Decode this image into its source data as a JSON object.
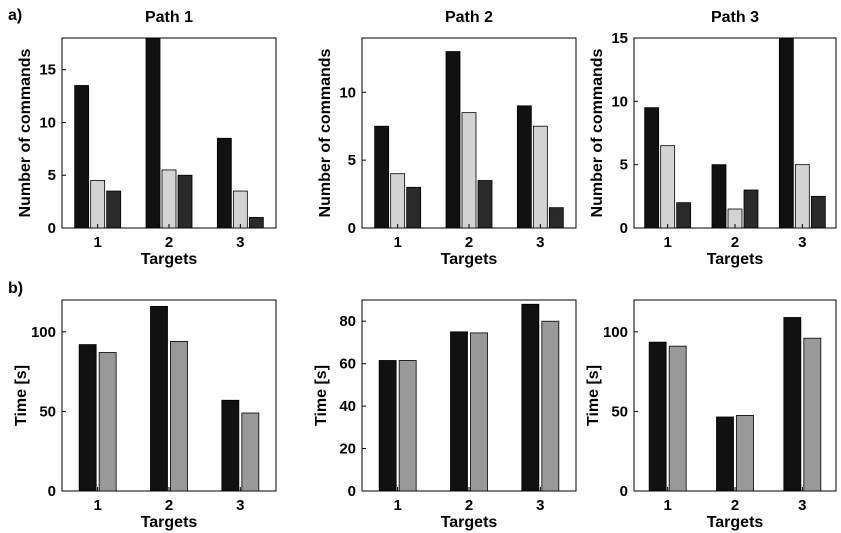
{
  "figure": {
    "row_labels": [
      "a)",
      "b)"
    ]
  },
  "colors": {
    "black": "#111111",
    "light_gray": "#d3d3d3",
    "dark_gray": "#2a2a2a",
    "medium_gray": "#999999"
  },
  "chart_data": [
    {
      "type": "bar",
      "row": 0,
      "col": 0,
      "title": "Path 1",
      "xlabel": "Targets",
      "ylabel": "Number of commands",
      "categories": [
        "1",
        "2",
        "3"
      ],
      "ylim": [
        0,
        18
      ],
      "yticks": [
        0,
        5,
        10,
        15
      ],
      "grid": false,
      "series": [
        {
          "values": [
            13.5,
            18,
            8.5
          ],
          "color": "#111111"
        },
        {
          "values": [
            4.5,
            5.5,
            3.5
          ],
          "color": "#d3d3d3"
        },
        {
          "values": [
            3.5,
            5,
            1
          ],
          "color": "#2a2a2a"
        }
      ]
    },
    {
      "type": "bar",
      "row": 0,
      "col": 1,
      "title": "Path 2",
      "xlabel": "Targets",
      "ylabel": "Number of commands",
      "categories": [
        "1",
        "2",
        "3"
      ],
      "ylim": [
        0,
        14
      ],
      "yticks": [
        0,
        5,
        10
      ],
      "grid": false,
      "series": [
        {
          "values": [
            7.5,
            13,
            9
          ],
          "color": "#111111"
        },
        {
          "values": [
            4,
            8.5,
            7.5
          ],
          "color": "#d3d3d3"
        },
        {
          "values": [
            3,
            3.5,
            1.5
          ],
          "color": "#2a2a2a"
        }
      ]
    },
    {
      "type": "bar",
      "row": 0,
      "col": 2,
      "title": "Path 3",
      "xlabel": "Targets",
      "ylabel": "Number of commands",
      "categories": [
        "1",
        "2",
        "3"
      ],
      "ylim": [
        0,
        15
      ],
      "yticks": [
        0,
        5,
        10,
        15
      ],
      "grid": false,
      "series": [
        {
          "values": [
            9.5,
            5,
            15
          ],
          "color": "#111111"
        },
        {
          "values": [
            6.5,
            1.5,
            5
          ],
          "color": "#d3d3d3"
        },
        {
          "values": [
            2,
            3,
            2.5
          ],
          "color": "#2a2a2a"
        }
      ]
    },
    {
      "type": "bar",
      "row": 1,
      "col": 0,
      "title": "",
      "xlabel": "Targets",
      "ylabel": "Time [s]",
      "categories": [
        "1",
        "2",
        "3"
      ],
      "ylim": [
        0,
        120
      ],
      "yticks": [
        0,
        50,
        100
      ],
      "grid": false,
      "series": [
        {
          "values": [
            92,
            116,
            57
          ],
          "color": "#111111"
        },
        {
          "values": [
            87,
            94,
            49
          ],
          "color": "#999999"
        }
      ]
    },
    {
      "type": "bar",
      "row": 1,
      "col": 1,
      "title": "",
      "xlabel": "Targets",
      "ylabel": "Time [s]",
      "categories": [
        "1",
        "2",
        "3"
      ],
      "ylim": [
        0,
        90
      ],
      "yticks": [
        0,
        20,
        40,
        60,
        80
      ],
      "grid": false,
      "series": [
        {
          "values": [
            61.5,
            75,
            88
          ],
          "color": "#111111"
        },
        {
          "values": [
            61.5,
            74.5,
            80
          ],
          "color": "#999999"
        }
      ]
    },
    {
      "type": "bar",
      "row": 1,
      "col": 2,
      "title": "",
      "xlabel": "Targets",
      "ylabel": "Time [s]",
      "categories": [
        "1",
        "2",
        "3"
      ],
      "ylim": [
        0,
        120
      ],
      "yticks": [
        0,
        50,
        100
      ],
      "grid": false,
      "series": [
        {
          "values": [
            93.5,
            46.5,
            109
          ],
          "color": "#111111"
        },
        {
          "values": [
            91,
            47.5,
            96
          ],
          "color": "#999999"
        }
      ]
    }
  ]
}
